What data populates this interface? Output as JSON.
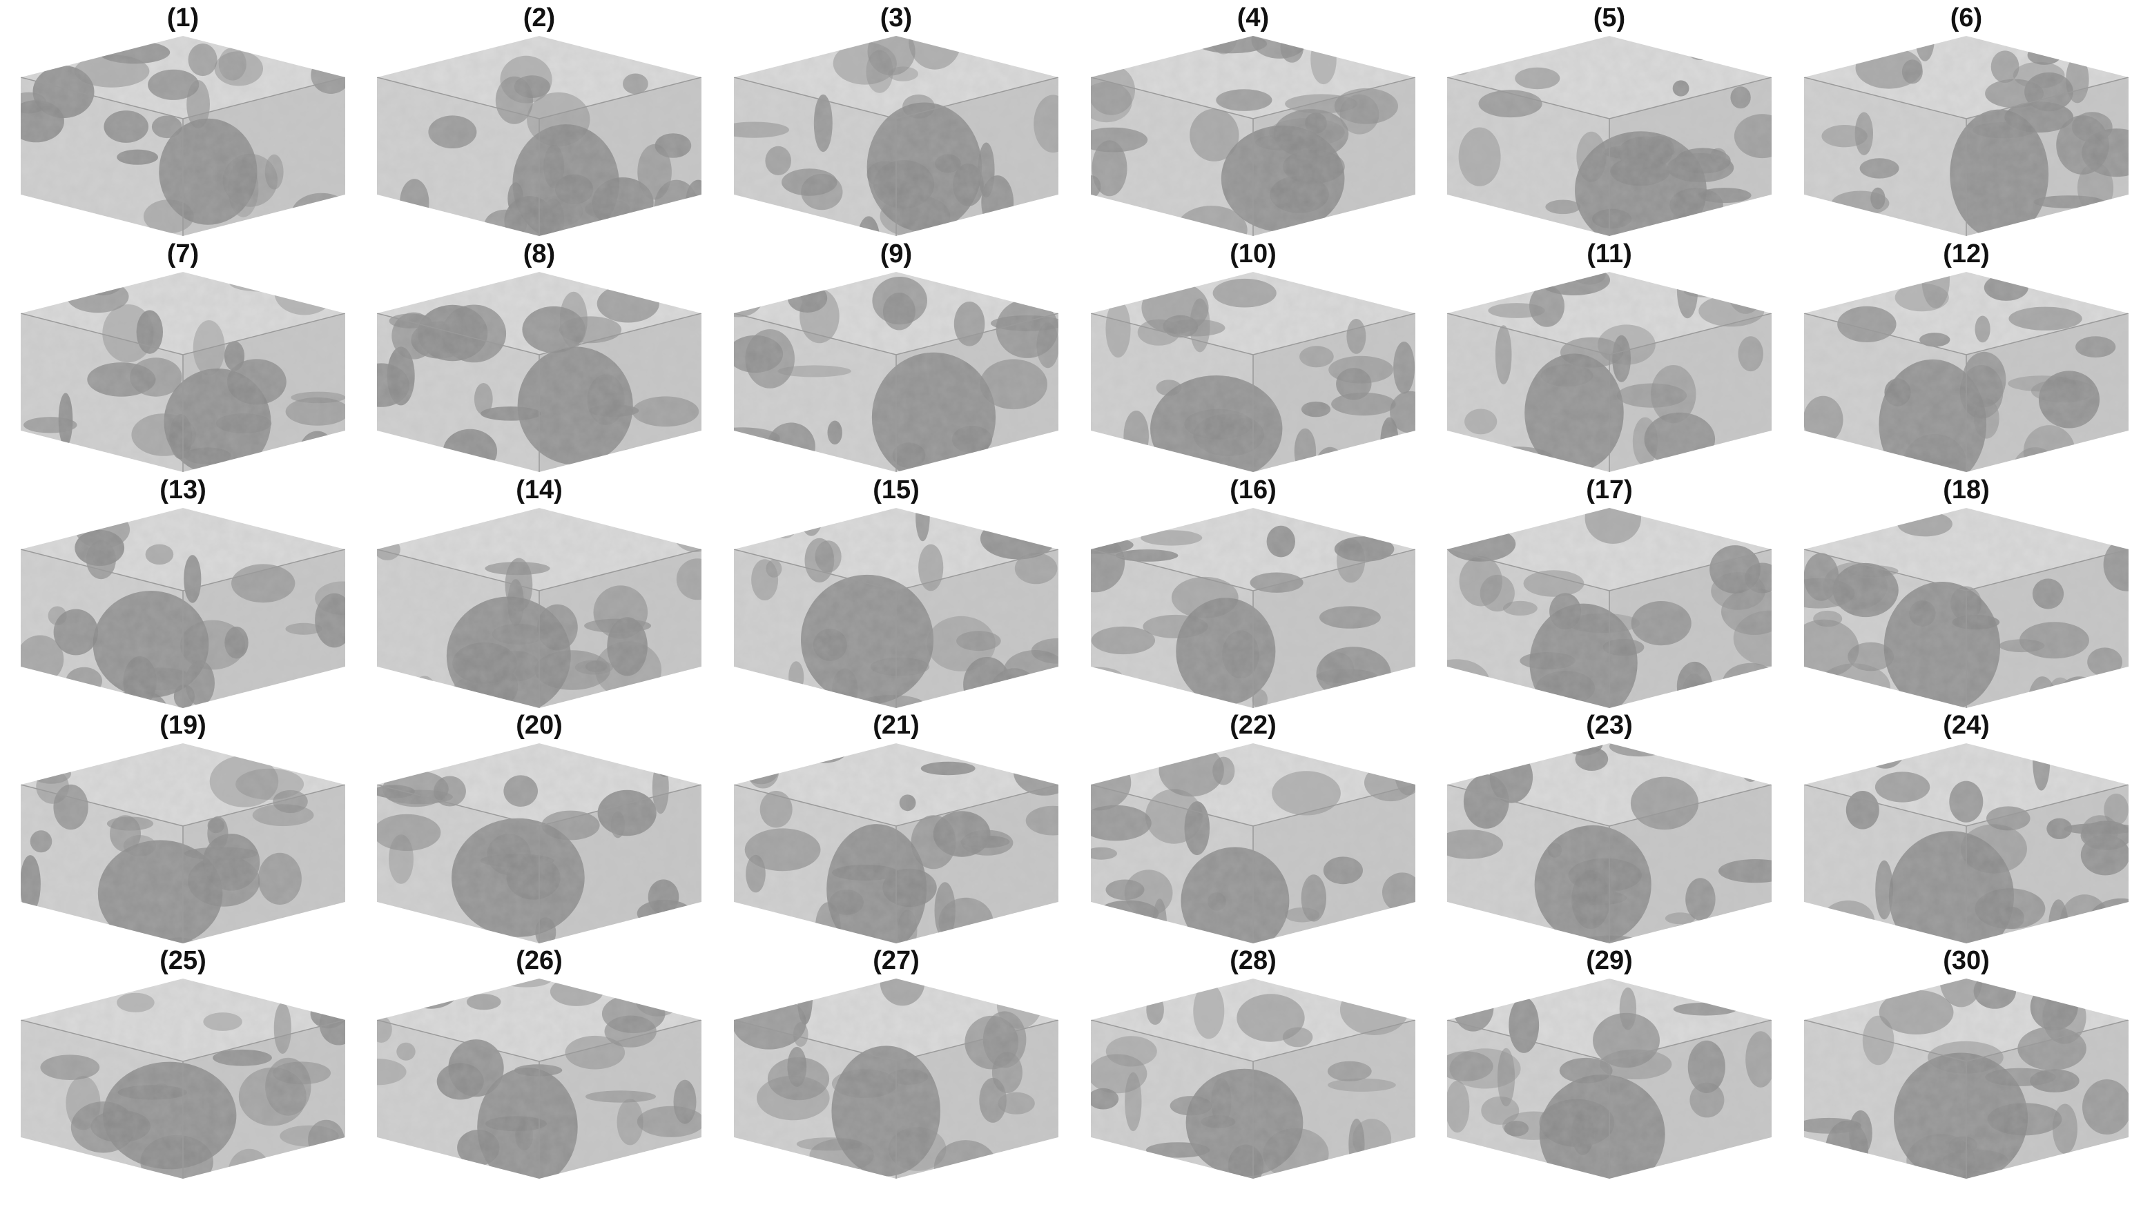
{
  "figure": {
    "panels": [
      {
        "label": "(1)"
      },
      {
        "label": "(2)"
      },
      {
        "label": "(3)"
      },
      {
        "label": "(4)"
      },
      {
        "label": "(5)"
      },
      {
        "label": "(6)"
      },
      {
        "label": "(7)"
      },
      {
        "label": "(8)"
      },
      {
        "label": "(9)"
      },
      {
        "label": "(10)"
      },
      {
        "label": "(11)"
      },
      {
        "label": "(12)"
      },
      {
        "label": "(13)"
      },
      {
        "label": "(14)"
      },
      {
        "label": "(15)"
      },
      {
        "label": "(16)"
      },
      {
        "label": "(17)"
      },
      {
        "label": "(18)"
      },
      {
        "label": "(19)"
      },
      {
        "label": "(20)"
      },
      {
        "label": "(21)"
      },
      {
        "label": "(22)"
      },
      {
        "label": "(23)"
      },
      {
        "label": "(24)"
      },
      {
        "label": "(25)"
      },
      {
        "label": "(26)"
      },
      {
        "label": "(27)"
      },
      {
        "label": "(28)"
      },
      {
        "label": "(29)"
      },
      {
        "label": "(30)"
      }
    ],
    "columns": 6,
    "rows": 5,
    "palette": {
      "background": "#ffffff",
      "light_tissue": "#d9d9d9",
      "dark_tissue": "#8c8c8c",
      "label_text": "#111111"
    }
  }
}
